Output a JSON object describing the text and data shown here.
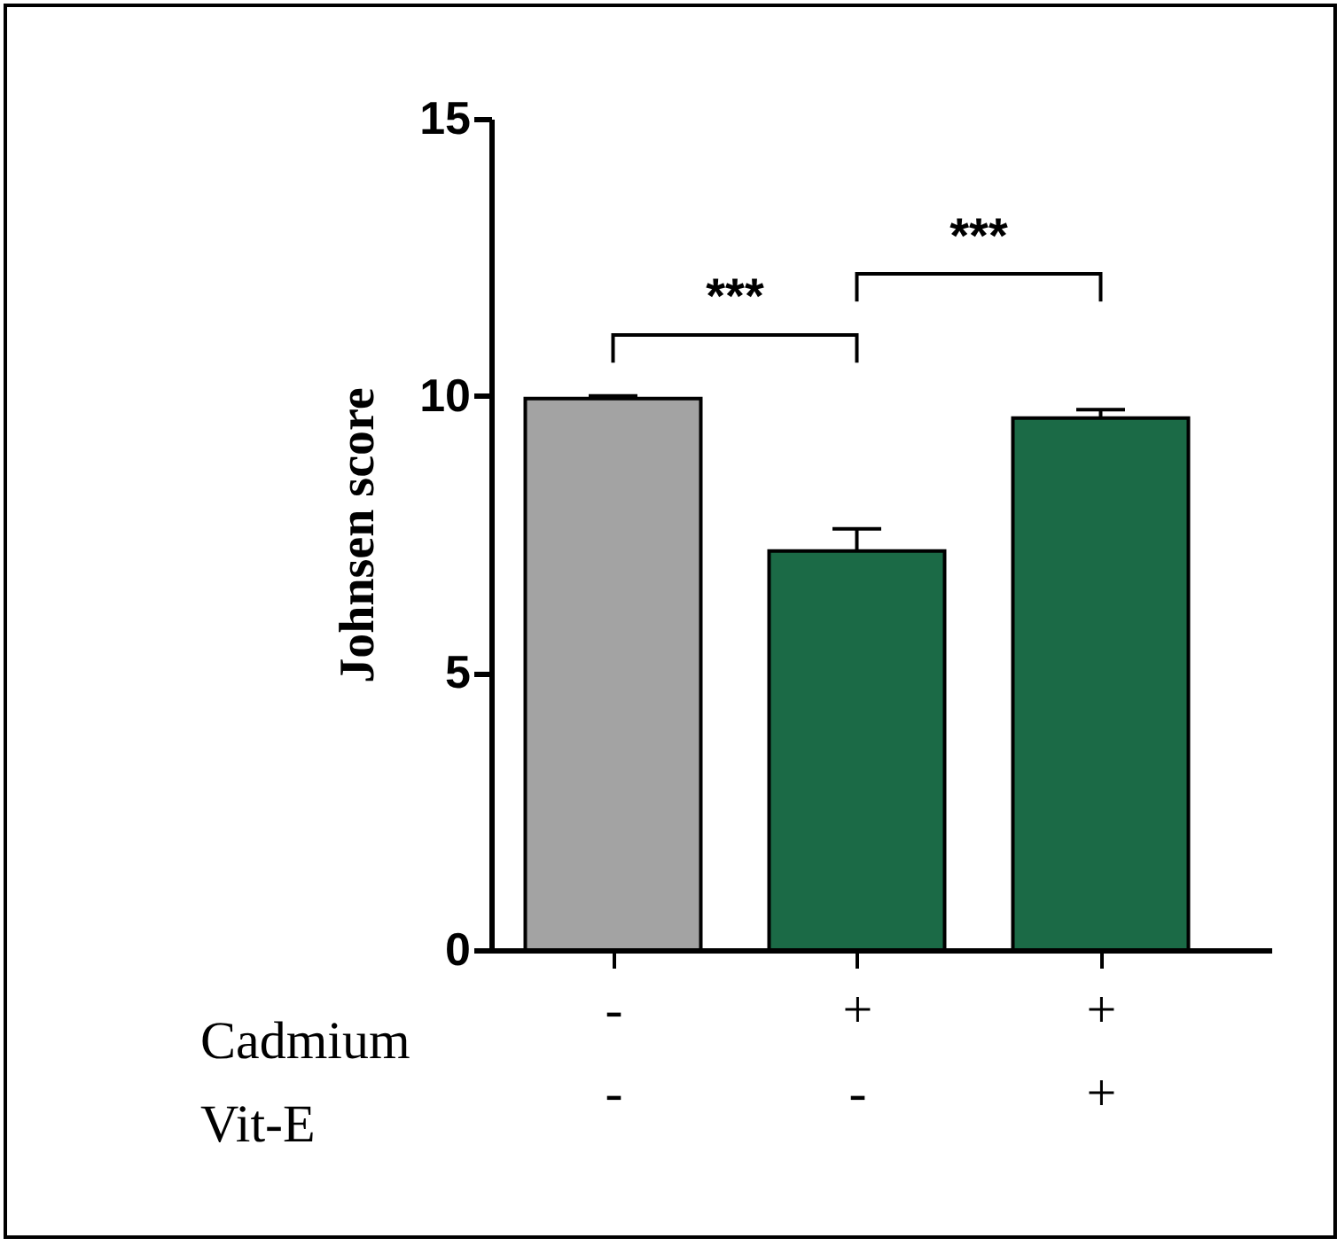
{
  "chart_data": {
    "type": "bar",
    "ylabel": "Johnsen score",
    "categories": [
      "-\n-",
      "+\n-",
      "+\n+"
    ],
    "values": [
      9.95,
      7.2,
      9.6
    ],
    "errors": [
      [
        9.95,
        10.0
      ],
      [
        7.2,
        7.6
      ],
      [
        9.6,
        9.75
      ]
    ],
    "colors": [
      "#a3a3a3",
      "#1b6a46",
      "#1b6a46"
    ],
    "ylim": [
      0,
      15
    ],
    "yticks": [
      0,
      5,
      10,
      15
    ],
    "grid": false,
    "annotations": [
      "***",
      "***",
      "Cadmium",
      "Vit-E"
    ]
  }
}
